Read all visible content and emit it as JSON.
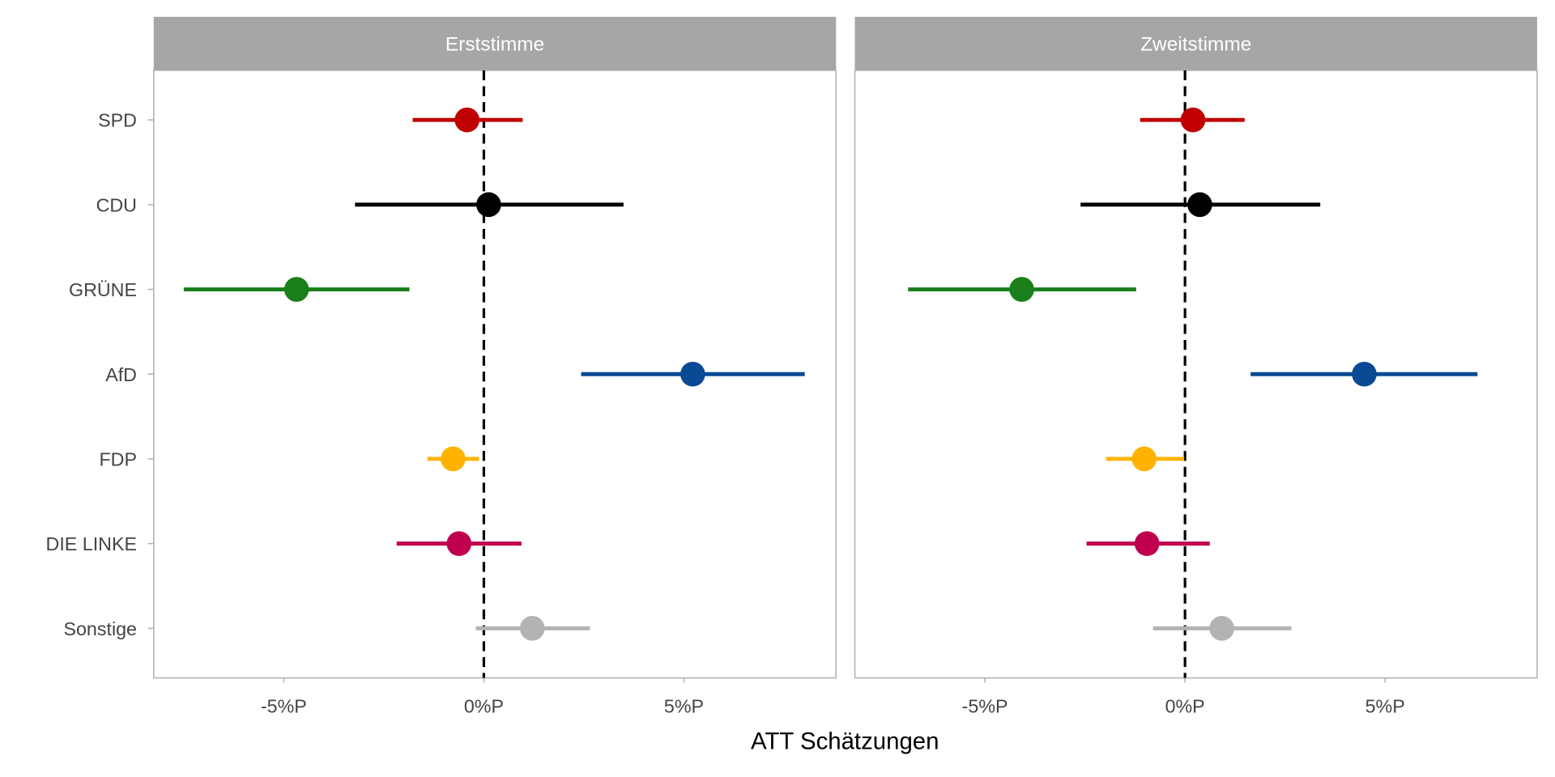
{
  "chart_data": {
    "type": "scatter",
    "subtype": "point-range (coefficient plot), faceted",
    "xlabel": "ATT Schätzungen",
    "ylabel": "",
    "x_tick_labels": [
      "-5%P",
      "0%P",
      "5%P"
    ],
    "x_ticks": [
      -5,
      0,
      5
    ],
    "xlim": [
      -8.25,
      8.8
    ],
    "reference_line": {
      "x": 0,
      "style": "dashed"
    },
    "categories": [
      "SPD",
      "CDU",
      "GRÜNE",
      "AfD",
      "FDP",
      "DIE LINKE",
      "Sonstige"
    ],
    "colors": [
      "#c00000",
      "#000000",
      "#1a7f1a",
      "#0a4a94",
      "#ffb300",
      "#c0004e",
      "#b3b3b3"
    ],
    "panels": [
      {
        "title": "Erststimme",
        "estimate": [
          -0.42,
          0.12,
          -4.68,
          5.22,
          -0.77,
          -0.62,
          1.21
        ],
        "ci_low": [
          -1.78,
          -3.22,
          -7.5,
          2.43,
          -1.41,
          -2.18,
          -0.2
        ],
        "ci_high": [
          0.97,
          3.49,
          -1.86,
          8.02,
          -0.12,
          0.94,
          2.65
        ]
      },
      {
        "title": "Zweitstimme",
        "estimate": [
          0.2,
          0.37,
          -4.08,
          4.48,
          -1.02,
          -0.95,
          0.92
        ],
        "ci_low": [
          -1.12,
          -2.61,
          -6.92,
          1.64,
          -1.97,
          -2.46,
          -0.8
        ],
        "ci_high": [
          1.49,
          3.38,
          -1.22,
          7.31,
          -0.02,
          0.62,
          2.66
        ]
      }
    ]
  }
}
